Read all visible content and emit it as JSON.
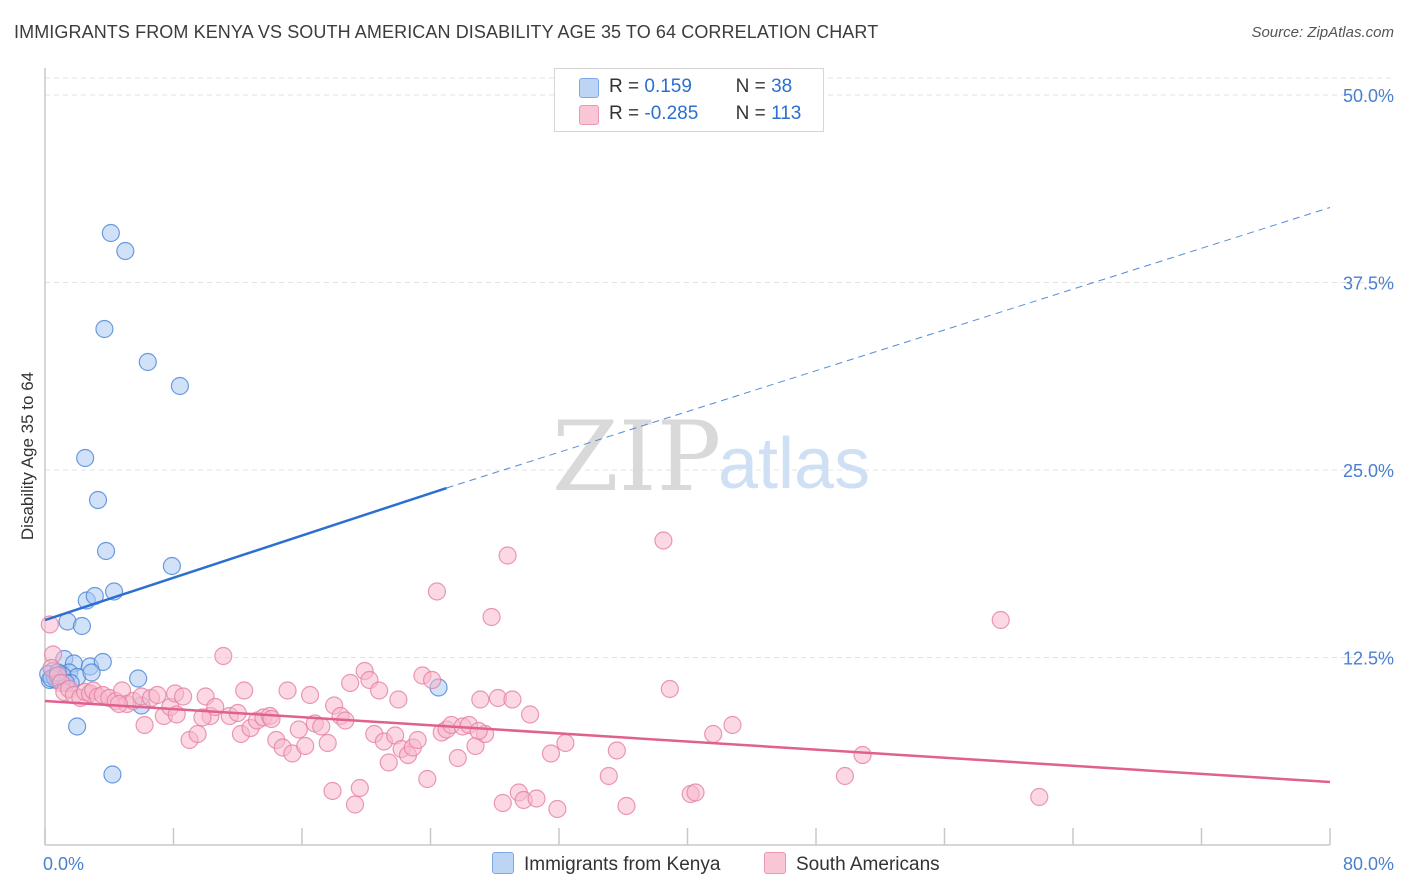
{
  "title": "IMMIGRANTS FROM KENYA VS SOUTH AMERICAN DISABILITY AGE 35 TO 64 CORRELATION CHART",
  "source": "Source: ZipAtlas.com",
  "watermark": {
    "zip": "ZIP",
    "atlas": "atlas"
  },
  "colors": {
    "kenya_fill": "#a9c8f2",
    "kenya_stroke": "#4a84d6",
    "kenya_line": "#2d6fd0",
    "sa_fill": "#f7b8cc",
    "sa_stroke": "#e57fa2",
    "sa_line": "#e0608e",
    "tick": "#4a7fd0",
    "grid": "#e3e3e3"
  },
  "legend": {
    "rows": [
      {
        "r_label": "R =",
        "r_value": " 0.159",
        "n_label": "N =",
        "n_value": " 38"
      },
      {
        "r_label": "R =",
        "r_value": "-0.285",
        "n_label": "N =",
        "n_value": "113"
      }
    ]
  },
  "chart_data": {
    "type": "scatter",
    "title": "IMMIGRANTS FROM KENYA VS SOUTH AMERICAN DISABILITY AGE 35 TO 64 CORRELATION CHART",
    "xlabel": "",
    "ylabel": "Disability Age 35 to 64",
    "xlim": [
      0,
      80
    ],
    "ylim": [
      0,
      50
    ],
    "x_tick_labels": [
      "0.0%",
      "80.0%"
    ],
    "y_ticks": [
      12.5,
      25.0,
      37.5,
      50.0
    ],
    "y_tick_labels": [
      "12.5%",
      "25.0%",
      "37.5%",
      "50.0%"
    ],
    "grid": true,
    "legend_position": "top-center",
    "series": [
      {
        "name": "Immigrants from Kenya",
        "color": "#a9c8f2",
        "trend": {
          "x": [
            0,
            25
          ],
          "y": [
            15.0,
            23.8
          ],
          "extended_to": [
            80,
            42.5
          ]
        },
        "points": [
          [
            4.1,
            40.8
          ],
          [
            5.0,
            39.6
          ],
          [
            3.7,
            34.4
          ],
          [
            6.4,
            32.2
          ],
          [
            8.4,
            30.6
          ],
          [
            2.5,
            25.8
          ],
          [
            3.3,
            23.0
          ],
          [
            3.8,
            19.6
          ],
          [
            7.9,
            18.6
          ],
          [
            2.6,
            16.3
          ],
          [
            3.1,
            16.6
          ],
          [
            4.3,
            16.9
          ],
          [
            1.4,
            14.9
          ],
          [
            2.3,
            14.6
          ],
          [
            1.2,
            12.4
          ],
          [
            1.8,
            12.1
          ],
          [
            2.8,
            11.9
          ],
          [
            3.6,
            12.2
          ],
          [
            0.5,
            11.6
          ],
          [
            1.0,
            11.4
          ],
          [
            0.3,
            11.0
          ],
          [
            0.7,
            11.0
          ],
          [
            1.5,
            11.5
          ],
          [
            2.0,
            11.2
          ],
          [
            2.9,
            11.5
          ],
          [
            5.8,
            11.1
          ],
          [
            0.2,
            11.4
          ],
          [
            0.9,
            11.0
          ],
          [
            1.1,
            11.3
          ],
          [
            0.6,
            11.2
          ],
          [
            1.6,
            10.8
          ],
          [
            1.3,
            10.8
          ],
          [
            24.5,
            10.5
          ],
          [
            6.0,
            9.3
          ],
          [
            2.0,
            7.9
          ],
          [
            4.2,
            4.7
          ],
          [
            0.4,
            11.1
          ],
          [
            0.8,
            11.5
          ]
        ]
      },
      {
        "name": "South Americans",
        "color": "#f7b8cc",
        "trend": {
          "x": [
            0,
            80
          ],
          "y": [
            9.6,
            4.2
          ]
        },
        "points": [
          [
            0.3,
            14.7
          ],
          [
            0.5,
            12.7
          ],
          [
            0.4,
            11.8
          ],
          [
            0.8,
            11.3
          ],
          [
            1.0,
            10.8
          ],
          [
            1.2,
            10.2
          ],
          [
            1.5,
            10.4
          ],
          [
            1.8,
            10.0
          ],
          [
            2.2,
            9.8
          ],
          [
            2.5,
            10.2
          ],
          [
            2.8,
            10.1
          ],
          [
            3.0,
            10.3
          ],
          [
            3.3,
            9.9
          ],
          [
            3.6,
            10.0
          ],
          [
            4.0,
            9.8
          ],
          [
            4.4,
            9.6
          ],
          [
            4.8,
            10.3
          ],
          [
            5.1,
            9.4
          ],
          [
            5.5,
            9.6
          ],
          [
            6.0,
            9.9
          ],
          [
            6.2,
            8.0
          ],
          [
            6.6,
            9.8
          ],
          [
            7.0,
            10.0
          ],
          [
            7.4,
            8.6
          ],
          [
            7.8,
            9.2
          ],
          [
            8.2,
            8.7
          ],
          [
            8.1,
            10.1
          ],
          [
            8.6,
            9.9
          ],
          [
            9.0,
            7.0
          ],
          [
            9.5,
            7.4
          ],
          [
            10.0,
            9.9
          ],
          [
            10.3,
            8.6
          ],
          [
            10.6,
            9.2
          ],
          [
            11.1,
            12.6
          ],
          [
            11.5,
            8.6
          ],
          [
            12.0,
            8.8
          ],
          [
            12.2,
            7.4
          ],
          [
            12.4,
            10.3
          ],
          [
            12.8,
            7.8
          ],
          [
            13.2,
            8.3
          ],
          [
            13.6,
            8.5
          ],
          [
            14.0,
            8.6
          ],
          [
            14.4,
            7.0
          ],
          [
            14.8,
            6.5
          ],
          [
            15.1,
            10.3
          ],
          [
            15.4,
            6.1
          ],
          [
            15.8,
            7.7
          ],
          [
            16.2,
            6.6
          ],
          [
            16.5,
            10.0
          ],
          [
            16.8,
            8.1
          ],
          [
            17.2,
            7.9
          ],
          [
            17.6,
            6.8
          ],
          [
            17.9,
            3.6
          ],
          [
            18.0,
            9.3
          ],
          [
            18.4,
            8.6
          ],
          [
            18.7,
            8.3
          ],
          [
            19.0,
            10.8
          ],
          [
            19.3,
            2.7
          ],
          [
            19.6,
            3.8
          ],
          [
            19.9,
            11.6
          ],
          [
            20.2,
            11.0
          ],
          [
            20.5,
            7.4
          ],
          [
            20.8,
            10.3
          ],
          [
            21.1,
            6.9
          ],
          [
            21.4,
            5.5
          ],
          [
            21.8,
            7.3
          ],
          [
            22.0,
            9.7
          ],
          [
            22.2,
            6.4
          ],
          [
            22.6,
            6.0
          ],
          [
            22.9,
            6.5
          ],
          [
            23.2,
            7.0
          ],
          [
            23.5,
            11.3
          ],
          [
            23.8,
            4.4
          ],
          [
            24.1,
            11.0
          ],
          [
            24.4,
            16.9
          ],
          [
            24.7,
            7.5
          ],
          [
            25.0,
            7.7
          ],
          [
            25.3,
            8.0
          ],
          [
            25.7,
            5.8
          ],
          [
            26.0,
            7.9
          ],
          [
            26.4,
            8.0
          ],
          [
            26.8,
            6.6
          ],
          [
            27.1,
            9.7
          ],
          [
            27.4,
            7.4
          ],
          [
            27.8,
            15.2
          ],
          [
            28.2,
            9.8
          ],
          [
            28.5,
            2.8
          ],
          [
            28.8,
            19.3
          ],
          [
            29.1,
            9.7
          ],
          [
            29.5,
            3.5
          ],
          [
            29.8,
            3.0
          ],
          [
            30.2,
            8.7
          ],
          [
            30.6,
            3.1
          ],
          [
            31.5,
            6.1
          ],
          [
            31.9,
            2.4
          ],
          [
            32.4,
            6.8
          ],
          [
            35.1,
            4.6
          ],
          [
            35.6,
            6.3
          ],
          [
            36.2,
            2.6
          ],
          [
            38.5,
            20.3
          ],
          [
            38.9,
            10.4
          ],
          [
            40.2,
            3.4
          ],
          [
            40.5,
            3.5
          ],
          [
            41.6,
            7.4
          ],
          [
            42.8,
            8.0
          ],
          [
            49.8,
            4.6
          ],
          [
            50.9,
            6.0
          ],
          [
            59.5,
            15.0
          ],
          [
            61.9,
            3.2
          ],
          [
            4.6,
            9.4
          ],
          [
            9.8,
            8.5
          ],
          [
            14.1,
            8.4
          ],
          [
            27.0,
            7.6
          ]
        ]
      }
    ]
  },
  "bottom_legend": [
    {
      "label": "Immigrants from Kenya"
    },
    {
      "label": "South Americans"
    }
  ]
}
